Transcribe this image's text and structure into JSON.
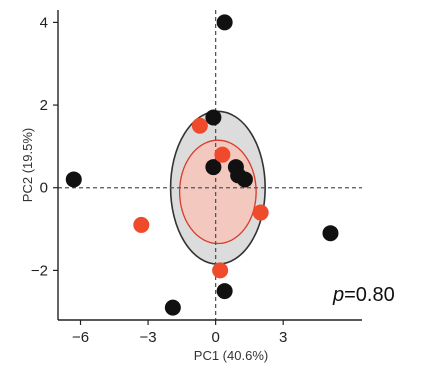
{
  "chart_data": {
    "type": "scatter",
    "xlabel": "PC1 (40.6%)",
    "ylabel": "PC2 (19.5%)",
    "xlim": [
      -7,
      6.5
    ],
    "ylim": [
      -3.2,
      4.3
    ],
    "xticks": [
      -6,
      -3,
      0,
      3
    ],
    "yticks": [
      -2,
      0,
      2,
      4
    ],
    "reference_lines": {
      "x": 0,
      "y": 0,
      "style": "dashed"
    },
    "grid": false,
    "annotation": {
      "italic": "p",
      "rest": "=0.80"
    },
    "colors": {
      "group_black": "#111111",
      "group_red": "#ee4a2b",
      "ellipse_black_fill": "#dcdcdc",
      "ellipse_black_stroke": "#333333",
      "ellipse_red_fill": "#f2c8bf",
      "ellipse_red_stroke": "#d93a2a"
    },
    "series": [
      {
        "color": "#111111",
        "points": [
          {
            "x": 0.4,
            "y": 4.0
          },
          {
            "x": -0.1,
            "y": 1.7
          },
          {
            "x": -6.3,
            "y": 0.2
          },
          {
            "x": -0.1,
            "y": 0.5
          },
          {
            "x": 0.9,
            "y": 0.5
          },
          {
            "x": 1.0,
            "y": 0.3
          },
          {
            "x": 1.3,
            "y": 0.2
          },
          {
            "x": 5.1,
            "y": -1.1
          },
          {
            "x": 0.4,
            "y": -2.5
          },
          {
            "x": -1.9,
            "y": -2.9
          }
        ]
      },
      {
        "color": "#ee4a2b",
        "points": [
          {
            "x": -0.7,
            "y": 1.5
          },
          {
            "x": 0.3,
            "y": 0.8
          },
          {
            "x": 2.0,
            "y": -0.6
          },
          {
            "x": -3.3,
            "y": -0.9
          },
          {
            "x": 0.2,
            "y": -2.0
          }
        ]
      }
    ],
    "ellipses": [
      {
        "cx": 0.1,
        "cy": 0.0,
        "rx": 2.1,
        "ry": 1.85,
        "fill": "#dcdcdc",
        "stroke": "#333333"
      },
      {
        "cx": 0.1,
        "cy": -0.1,
        "rx": 1.7,
        "ry": 1.25,
        "fill": "#f2c8bf",
        "stroke": "#d93a2a"
      }
    ]
  }
}
